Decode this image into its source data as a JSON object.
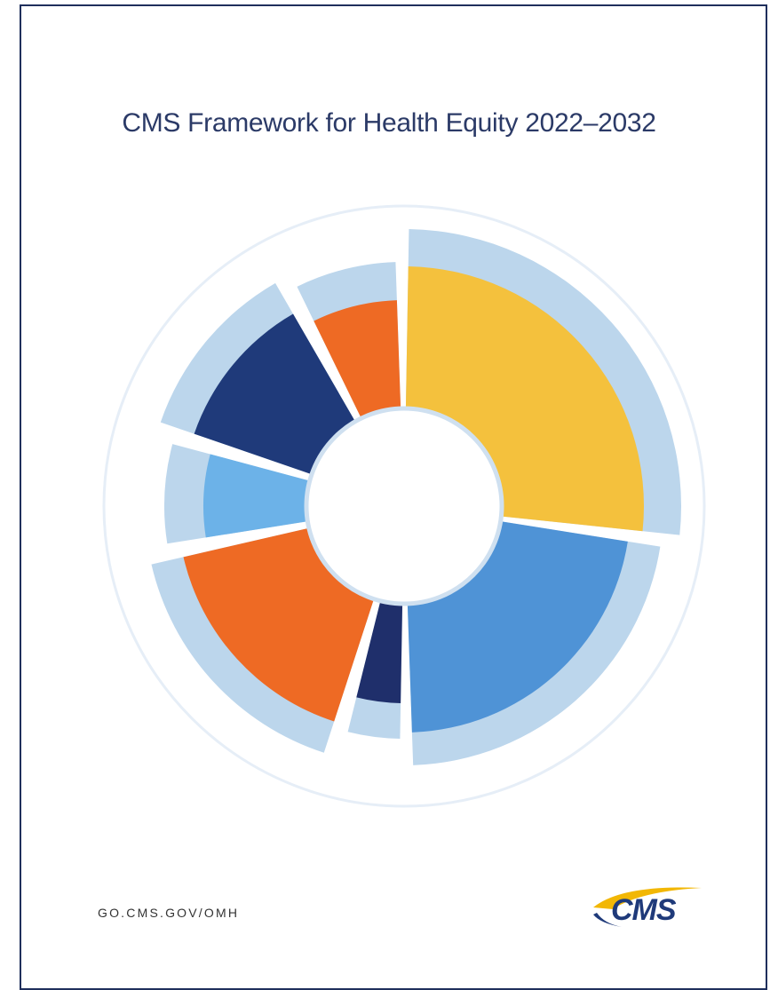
{
  "header": {
    "title": "CMS Framework for Health Equity 2022–2032"
  },
  "footer": {
    "url": "GO.CMS.GOV/OMH",
    "logo": "CMS"
  }
}
